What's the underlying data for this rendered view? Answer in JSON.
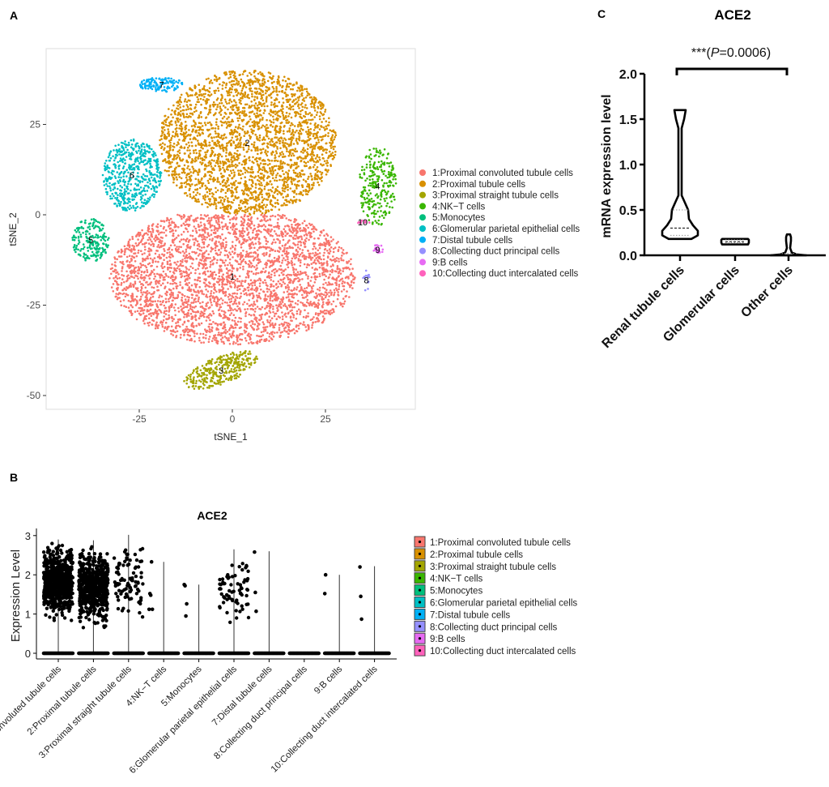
{
  "panels": {
    "a": "A",
    "b": "B",
    "c": "C"
  },
  "chart_data": [
    {
      "type": "scatter",
      "panel": "A",
      "xlabel": "tSNE_1",
      "ylabel": "tSNE_2",
      "xlim": [
        -50,
        49
      ],
      "ylim": [
        -54,
        46
      ],
      "xticks": [
        -25,
        0,
        25
      ],
      "yticks": [
        -50,
        -25,
        0,
        25
      ],
      "grid": false,
      "legend_position": "right",
      "clusters": [
        {
          "id": "1",
          "name": "1:Proximal convoluted tubule cells",
          "color": "#F8766D",
          "center": [
            0,
            -17
          ],
          "extent": [
            33,
            19
          ]
        },
        {
          "id": "2",
          "name": "2:Proximal tubule cells",
          "color": "#D89000",
          "center": [
            4,
            20
          ],
          "extent": [
            24,
            20
          ]
        },
        {
          "id": "3",
          "name": "3:Proximal straight tubule cells",
          "color": "#A3A500",
          "center": [
            -3,
            -43
          ],
          "extent": [
            10,
            4
          ]
        },
        {
          "id": "4",
          "name": "4:NK−T cells",
          "color": "#39B600",
          "center": [
            39,
            8
          ],
          "extent": [
            5,
            11
          ]
        },
        {
          "id": "5",
          "name": "5:Monocytes",
          "color": "#00BF7D",
          "center": [
            -38,
            -7
          ],
          "extent": [
            5,
            6
          ]
        },
        {
          "id": "6",
          "name": "6:Glomerular parietal epithelial cells",
          "color": "#00BFC4",
          "center": [
            -27,
            11
          ],
          "extent": [
            8,
            10
          ]
        },
        {
          "id": "7",
          "name": "7:Distal tubule cells",
          "color": "#00B0F6",
          "center": [
            -19,
            36
          ],
          "extent": [
            6,
            2
          ]
        },
        {
          "id": "8",
          "name": "8:Collecting duct principal cells",
          "color": "#9590FF",
          "center": [
            36,
            -18
          ],
          "extent": [
            1,
            3
          ]
        },
        {
          "id": "9",
          "name": "9:B cells",
          "color": "#E76BF3",
          "center": [
            39,
            -9.6
          ],
          "extent": [
            1.5,
            1.5
          ]
        },
        {
          "id": "10",
          "name": "10:Collecting duct intercalated cells",
          "color": "#FF62BC",
          "center": [
            35,
            -2
          ],
          "extent": [
            2,
            0.6
          ]
        }
      ]
    },
    {
      "type": "strip",
      "panel": "B",
      "title": "ACE2",
      "ylabel": "Expression Level",
      "ylim": [
        0,
        3
      ],
      "yticks": [
        0,
        1,
        2,
        3
      ],
      "legend_position": "right",
      "categories": [
        "1:Proximal convoluted tubule cells",
        "2:Proximal tubule cells",
        "3:Proximal straight tubule cells",
        "4:NK−T cells",
        "5:Monocytes",
        "6:Glomerular parietal epithelial cells",
        "7:Distal tubule cells",
        "8:Collecting duct principal cells",
        "9:B cells",
        "10:Collecting duct intercalated cells"
      ],
      "colors": [
        "#F8766D",
        "#D89000",
        "#A3A500",
        "#39B600",
        "#00BF7D",
        "#00BFC4",
        "#00B0F6",
        "#9590FF",
        "#E76BF3",
        "#FF62BC"
      ],
      "max": [
        2.9,
        2.88,
        3.02,
        2.33,
        1.75,
        2.65,
        2.6,
        0,
        2.0,
        2.22
      ],
      "dense_nonzero": [
        {
          "n": 700,
          "range": [
            0.75,
            2.9
          ]
        },
        {
          "n": 600,
          "range": [
            0.52,
            2.88
          ]
        },
        {
          "n": 90,
          "range": [
            0.7,
            3.02
          ]
        },
        null,
        null,
        {
          "n": 70,
          "range": [
            0.63,
            2.65
          ]
        },
        null,
        null,
        null,
        null
      ],
      "sparse_nonzero": [
        null,
        null,
        null,
        [
          1.12,
          1.52,
          1.48,
          2.33,
          1.12
        ],
        [
          1.75,
          1.72,
          0.95,
          1.26
        ],
        null,
        [
          2.58,
          1.55,
          1.07
        ],
        [],
        [
          1.52,
          2.0
        ],
        [
          2.2,
          1.45,
          0.87
        ]
      ]
    },
    {
      "type": "violin",
      "panel": "C",
      "title": "ACE2",
      "ylabel": "mRNA expression level",
      "ylim": [
        0,
        2.0
      ],
      "yticks": [
        "0.0",
        "0.5",
        "1.0",
        "1.5",
        "2.0"
      ],
      "categories": [
        "Renal tubule cells",
        "Glomerular cells",
        "Other cells"
      ],
      "series": [
        {
          "min": 0.18,
          "q1": 0.22,
          "median": 0.3,
          "q3": 0.5,
          "max": 1.6
        },
        {
          "min": 0.12,
          "q1": 0.14,
          "median": 0.15,
          "q3": 0.17,
          "max": 0.18
        },
        {
          "min": 0.0,
          "q1": 0.0,
          "median": 0.0,
          "q3": 0.02,
          "max": 0.23
        }
      ],
      "annotation": {
        "stars": "***",
        "open": "(",
        "p_symbol": "P",
        "p_value": "=0.0006)",
        "compare": [
          "Renal tubule cells",
          "Other cells"
        ]
      }
    }
  ]
}
